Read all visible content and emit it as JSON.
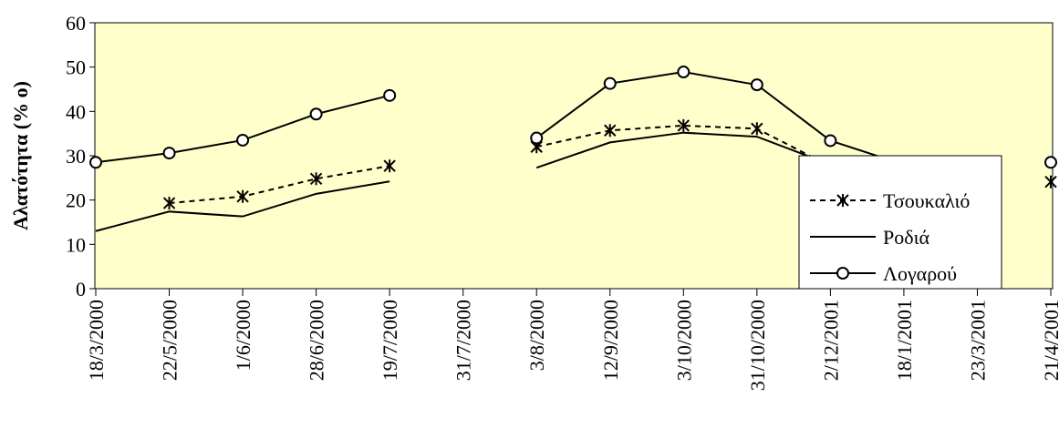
{
  "chart_data": {
    "type": "line",
    "title": "",
    "xlabel": "",
    "ylabel": "Αλατότητα (% o)",
    "ylim": [
      0,
      60
    ],
    "yticks": [
      0,
      10,
      20,
      30,
      40,
      50,
      60
    ],
    "grid": false,
    "legend_position": "bottom-right",
    "plot_background": "#ffffcc",
    "categories": [
      "18/3/2000",
      "22/5/2000",
      "1/6/2000",
      "28/6/2000",
      "19/7/2000",
      "31/7/2000",
      "3/8/2000",
      "12/9/2000",
      "3/10/2000",
      "31/10/2000",
      "2/12/2001",
      "18/1/2001",
      "23/3/2001",
      "21/4/2001"
    ],
    "series": [
      {
        "name": "Τσουκαλιό",
        "line_style": "dashed",
        "marker": "asterisk",
        "color": "#000000",
        "values": [
          null,
          19.3,
          20.8,
          24.8,
          27.7,
          null,
          32,
          35.7,
          36.8,
          36.1,
          27.6,
          null,
          null,
          24.1
        ]
      },
      {
        "name": "Ροδιά",
        "line_style": "solid",
        "marker": "none",
        "color": "#000000",
        "values": [
          13,
          17.4,
          16.3,
          21.4,
          24.2,
          null,
          27.3,
          33,
          35.2,
          34.3,
          28,
          null,
          null,
          null
        ]
      },
      {
        "name": "Λογαρού",
        "line_style": "solid",
        "marker": "circle",
        "color": "#000000",
        "values": [
          28.5,
          30.6,
          33.5,
          39.4,
          43.6,
          null,
          34,
          46.3,
          48.9,
          46,
          33.4,
          28,
          null,
          28.5
        ]
      }
    ]
  }
}
